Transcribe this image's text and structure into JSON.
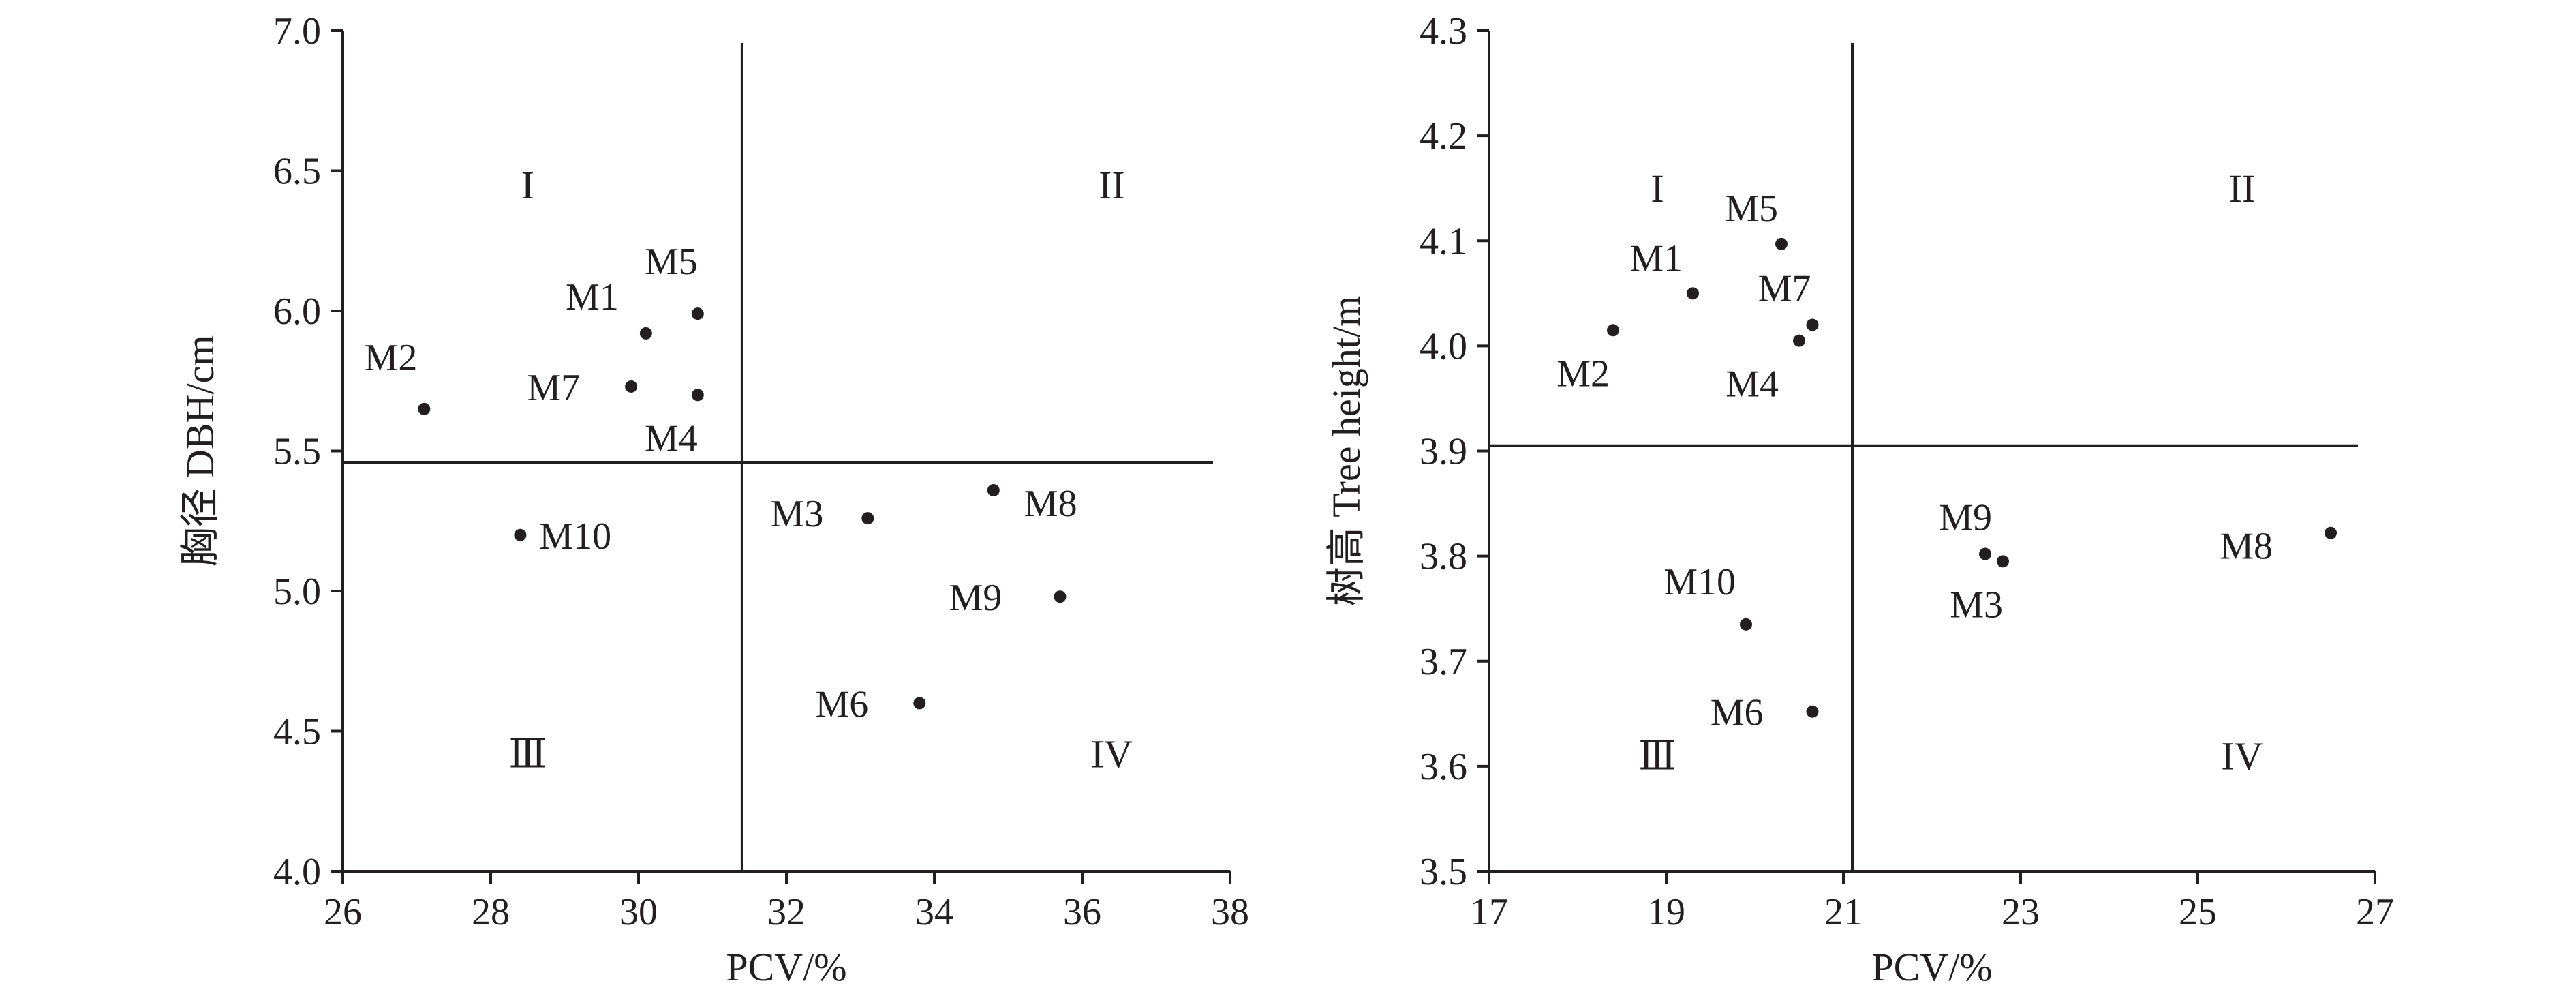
{
  "chart_data": [
    {
      "type": "scatter",
      "xlabel": "PCV/%",
      "ylabel": "胸径 DBH/cm",
      "xlim": [
        26,
        38
      ],
      "ylim": [
        4.0,
        7.0
      ],
      "x_ticks": [
        "26",
        "28",
        "30",
        "32",
        "34",
        "36",
        "38"
      ],
      "y_ticks": [
        "4.0",
        "4.5",
        "5.0",
        "5.5",
        "6.0",
        "6.5",
        "7.0"
      ],
      "grid": false,
      "legend": "none",
      "vertical_divider_x": 31.4,
      "horizontal_divider_y": 5.46,
      "quadrant_labels": [
        {
          "text": "I",
          "x": 28.5,
          "y": 6.45
        },
        {
          "text": "II",
          "x": 36.4,
          "y": 6.45
        },
        {
          "text": "Ⅲ",
          "x": 28.5,
          "y": 4.42
        },
        {
          "text": "IV",
          "x": 36.4,
          "y": 4.42
        }
      ],
      "points": [
        {
          "label": "M1",
          "x": 30.1,
          "y": 5.92
        },
        {
          "label": "M2",
          "x": 27.1,
          "y": 5.65
        },
        {
          "label": "M3",
          "x": 33.1,
          "y": 5.26
        },
        {
          "label": "M4",
          "x": 30.8,
          "y": 5.7
        },
        {
          "label": "M5",
          "x": 30.8,
          "y": 5.99
        },
        {
          "label": "M6",
          "x": 33.8,
          "y": 4.6
        },
        {
          "label": "M7",
          "x": 29.9,
          "y": 5.73
        },
        {
          "label": "M8",
          "x": 34.8,
          "y": 5.36
        },
        {
          "label": "M9",
          "x": 35.7,
          "y": 4.98
        },
        {
          "label": "M10",
          "x": 28.4,
          "y": 5.2
        }
      ]
    },
    {
      "type": "scatter",
      "xlabel": "PCV/%",
      "ylabel": "树高 Tree height/m",
      "xlim": [
        17,
        27
      ],
      "ylim": [
        3.5,
        4.3
      ],
      "x_ticks": [
        "17",
        "19",
        "21",
        "23",
        "25",
        "27"
      ],
      "y_ticks": [
        "3.5",
        "3.6",
        "3.7",
        "3.8",
        "3.9",
        "4.0",
        "4.1",
        "4.2",
        "4.3"
      ],
      "grid": false,
      "legend": "none",
      "vertical_divider_x": 21.1,
      "horizontal_divider_y": 3.905,
      "quadrant_labels": [
        {
          "text": "I",
          "x": 18.9,
          "y": 4.15
        },
        {
          "text": "II",
          "x": 25.5,
          "y": 4.15
        },
        {
          "text": "Ⅲ",
          "x": 18.9,
          "y": 3.61
        },
        {
          "text": "IV",
          "x": 25.5,
          "y": 3.61
        }
      ],
      "points": [
        {
          "label": "M1",
          "x": 19.3,
          "y": 4.05
        },
        {
          "label": "M2",
          "x": 18.4,
          "y": 4.015
        },
        {
          "label": "M3",
          "x": 22.8,
          "y": 3.795
        },
        {
          "label": "M4",
          "x": 20.5,
          "y": 4.005
        },
        {
          "label": "M5",
          "x": 20.3,
          "y": 4.097
        },
        {
          "label": "M6",
          "x": 20.65,
          "y": 3.652
        },
        {
          "label": "M7",
          "x": 20.65,
          "y": 4.02
        },
        {
          "label": "M8",
          "x": 26.5,
          "y": 3.822
        },
        {
          "label": "M9",
          "x": 22.6,
          "y": 3.802
        },
        {
          "label": "M10",
          "x": 19.9,
          "y": 3.735
        }
      ]
    }
  ]
}
